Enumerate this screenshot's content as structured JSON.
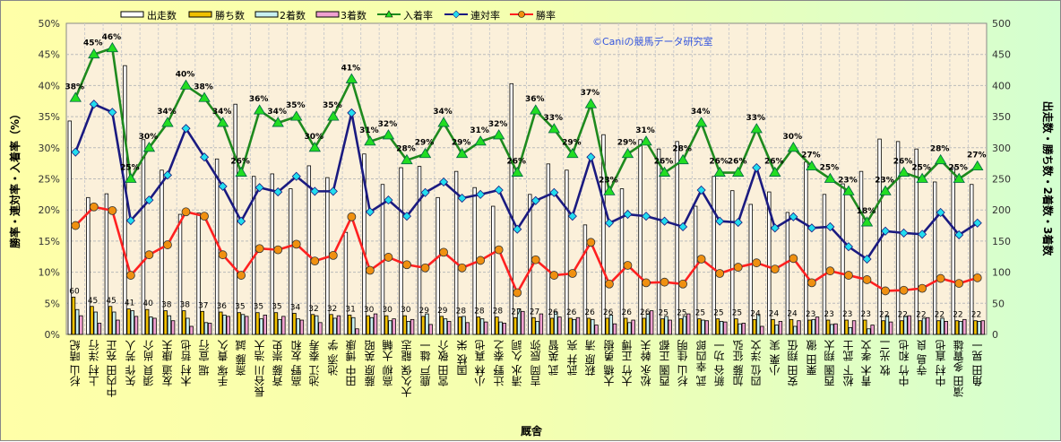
{
  "legend": {
    "runs": "出走数",
    "wins": "勝ち数",
    "second": "2着数",
    "third": "3着数",
    "place_rate": "入着率",
    "rentai_rate": "連対率",
    "win_rate": "勝率"
  },
  "watermark": "©Caniの競馬データ研究室",
  "colors": {
    "runs": "#FFFFFF",
    "wins": "#F0C000",
    "second": "#C8F0F0",
    "third": "#F0A0D0",
    "place_rate": "#1E8A1E",
    "place_marker": "#22DD22",
    "rentai_rate": "#1A1A80",
    "rentai_marker": "#22DDEE",
    "win_rate": "#FF2020",
    "win_marker": "#F09010",
    "plot_bg": "#FBF0DA"
  },
  "chart_data": {
    "type": "bar+line",
    "title": "",
    "xlabel": "厩舎",
    "ylabel_left": "勝率・連対率・入着率（%）",
    "ylabel_right": "出走数・勝ち数・2着数・3着数",
    "ylim_left": [
      0,
      50
    ],
    "ylim_right": [
      0,
      500
    ],
    "yticks_left": [
      "0%",
      "5%",
      "10%",
      "15%",
      "20%",
      "25%",
      "30%",
      "35%",
      "40%",
      "45%",
      "50%"
    ],
    "yticks_right": [
      "0",
      "50",
      "100",
      "150",
      "200",
      "250",
      "300",
      "350",
      "400",
      "450",
      "500"
    ],
    "grid": true,
    "legend_position": "top",
    "categories": [
      "杉山 晴紀",
      "上村 洋行",
      "中内田 充正",
      "矢作 芳人",
      "須貝 尚介",
      "友道 康夫",
      "木村 哲也",
      "堀 宣行",
      "手塚 貴久",
      "斎藤 誠",
      "長谷川 浩大",
      "斉藤 崇史",
      "高野 友和",
      "池江 泰寿",
      "池添 学",
      "田中 博康",
      "藤原 英昭",
      "高柳 大輔",
      "大久保 龍志",
      "鹿戸 雄一",
      "宮田 敬介",
      "国枝 栄",
      "小林 真也",
      "辻野 泰之",
      "清水 久詞",
      "吉岡 辰弥",
      "武 英智",
      "武井 亮",
      "萩原 清",
      "大橋 勇樹",
      "大竹 正博",
      "松永 幹夫",
      "西園 正都",
      "杉山 佳明",
      "武 幸四郎",
      "新谷 功一",
      "加藤 征弘",
      "四位 洋文",
      "小栗 実",
      "安田 翔伍",
      "栗田 徹",
      "西園 翔太",
      "松下 武士",
      "青木 孝文",
      "牧 光二",
      "中竹 和也",
      "寺島 良",
      "中村 直也",
      "濱田 多實雄",
      "角田 晃一"
    ],
    "series": [
      {
        "name": "出走数",
        "type": "bar",
        "axis": "right",
        "values": [
          343,
          220,
          226,
          432,
          313,
          264,
          193,
          195,
          282,
          370,
          254,
          258,
          234,
          271,
          252,
          164,
          290,
          241,
          268,
          270,
          220,
          262,
          236,
          206,
          403,
          225,
          274,
          264,
          176,
          321,
          234,
          313,
          298,
          310,
          206,
          254,
          231,
          209,
          229,
          196,
          277,
          225,
          242,
          262,
          314,
          310,
          298,
          245,
          268,
          241
        ]
      },
      {
        "name": "勝ち数",
        "type": "bar",
        "axis": "right",
        "values": [
          60,
          45,
          45,
          41,
          40,
          38,
          38,
          37,
          36,
          35,
          35,
          35,
          34,
          32,
          32,
          31,
          30,
          30,
          30,
          29,
          29,
          28,
          28,
          28,
          27,
          27,
          26,
          26,
          26,
          26,
          26,
          26,
          25,
          25,
          25,
          25,
          25,
          24,
          24,
          24,
          23,
          23,
          23,
          23,
          22,
          22,
          22,
          22,
          22,
          22
        ]
      },
      {
        "name": "2着数",
        "type": "bar",
        "axis": "right",
        "values": [
          40,
          36,
          36,
          38,
          28,
          30,
          26,
          19,
          31,
          32,
          25,
          24,
          25,
          30,
          26,
          27,
          27,
          22,
          21,
          33,
          25,
          29,
          25,
          20,
          41,
          21,
          36,
          24,
          24,
          31,
          19,
          33,
          29,
          29,
          23,
          21,
          17,
          32,
          15,
          13,
          24,
          16,
          11,
          9,
          30,
          29,
          26,
          26,
          21,
          21
        ]
      },
      {
        "name": "3着数",
        "type": "bar",
        "axis": "right",
        "values": [
          30,
          18,
          23,
          29,
          26,
          22,
          13,
          18,
          29,
          29,
          31,
          29,
          23,
          19,
          30,
          9,
          33,
          25,
          24,
          16,
          21,
          19,
          20,
          18,
          37,
          33,
          28,
          27,
          15,
          17,
          23,
          38,
          23,
          33,
          22,
          20,
          18,
          13,
          21,
          22,
          28,
          17,
          22,
          15,
          20,
          30,
          27,
          21,
          24,
          22
        ]
      },
      {
        "name": "入着率",
        "type": "line",
        "axis": "left",
        "values": [
          38,
          45,
          46,
          25,
          30,
          34,
          40,
          38,
          34,
          26,
          36,
          34,
          35,
          30,
          35,
          41,
          31,
          32,
          28,
          29,
          34,
          29,
          31,
          32,
          26,
          36,
          33,
          29,
          37,
          23,
          29,
          31,
          26,
          28,
          34,
          26,
          26,
          33,
          26,
          30,
          27,
          25,
          23,
          18,
          23,
          26,
          25,
          28,
          25,
          27
        ],
        "labels": [
          "38%",
          "45%",
          "46%",
          "25%",
          "30%",
          "34%",
          "40%",
          "38%",
          "34%",
          "26%",
          "36%",
          "34%",
          "35%",
          "30%",
          "35%",
          "41%",
          "31%",
          "32%",
          "28%",
          "29%",
          "34%",
          "29%",
          "31%",
          "32%",
          "26%",
          "36%",
          "33%",
          "29%",
          "37%",
          "23%",
          "29%",
          "31%",
          "26%",
          "28%",
          "34%",
          "26%",
          "26%",
          "33%",
          "26%",
          "30%",
          "27%",
          "25%",
          "23%",
          "18%",
          "23%",
          "26%",
          "25%",
          "28%",
          "25%",
          "27%"
        ]
      },
      {
        "name": "連対率",
        "type": "line",
        "axis": "left",
        "values": [
          29.3,
          37.0,
          35.7,
          18.3,
          21.6,
          25.6,
          33.1,
          28.5,
          23.8,
          18.2,
          23.6,
          22.9,
          25.4,
          23.0,
          23.0,
          35.6,
          19.7,
          21.6,
          19.0,
          22.8,
          24.5,
          21.9,
          22.5,
          23.2,
          16.9,
          21.5,
          22.8,
          19.0,
          28.5,
          17.9,
          19.3,
          19.0,
          18.2,
          17.3,
          23.2,
          18.2,
          18.0,
          26.8,
          17.1,
          18.9,
          17.1,
          17.3,
          14.1,
          12.1,
          16.6,
          16.3,
          16.1,
          19.6,
          16.0,
          17.9
        ]
      },
      {
        "name": "勝率",
        "type": "line",
        "axis": "left",
        "values": [
          17.5,
          20.5,
          19.9,
          9.5,
          12.8,
          14.4,
          19.7,
          19.0,
          12.8,
          9.5,
          13.8,
          13.6,
          14.5,
          11.8,
          12.7,
          18.9,
          10.3,
          12.4,
          11.2,
          10.7,
          13.2,
          10.7,
          11.9,
          13.6,
          6.7,
          12.0,
          9.5,
          9.8,
          14.8,
          8.1,
          11.1,
          8.3,
          8.4,
          8.1,
          12.1,
          9.8,
          10.8,
          11.5,
          10.5,
          12.2,
          8.3,
          10.2,
          9.5,
          8.8,
          7.0,
          7.1,
          7.4,
          9.0,
          8.2,
          9.1
        ]
      }
    ],
    "bar_labels": [
      "60",
      "45",
      "45",
      "41",
      "40",
      "38",
      "38",
      "37",
      "36",
      "35",
      "35",
      "35",
      "34",
      "32",
      "32",
      "31",
      "30",
      "30",
      "30",
      "29",
      "29",
      "28",
      "28",
      "28",
      "27",
      "27",
      "26",
      "26",
      "26",
      "26",
      "26",
      "26",
      "25",
      "25",
      "25",
      "25",
      "25",
      "24",
      "24",
      "24",
      "23",
      "23",
      "23",
      "23",
      "22",
      "22",
      "22",
      "22",
      "22",
      "22"
    ]
  }
}
